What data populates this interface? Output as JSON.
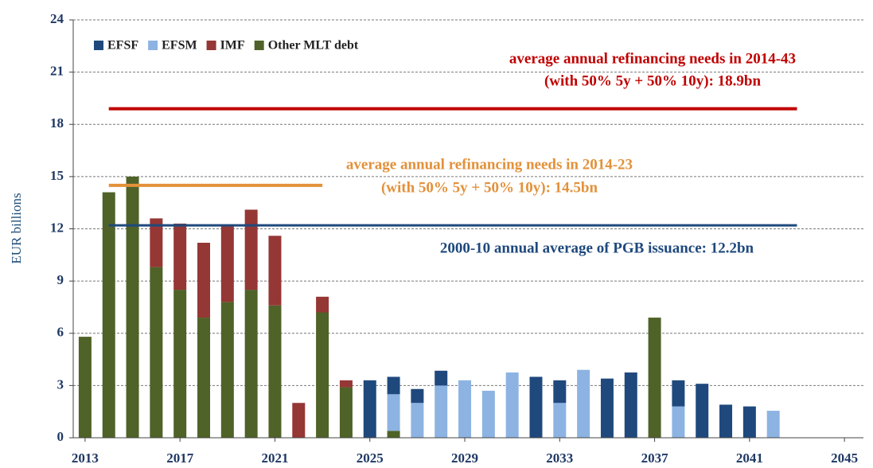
{
  "chart_data": {
    "type": "stacked_bar",
    "y_label": "EUR billions",
    "x": [
      2013,
      2014,
      2015,
      2016,
      2017,
      2018,
      2019,
      2020,
      2021,
      2022,
      2023,
      2024,
      2025,
      2026,
      2027,
      2028,
      2029,
      2030,
      2031,
      2032,
      2033,
      2034,
      2035,
      2036,
      2037,
      2038,
      2039,
      2040,
      2041,
      2042
    ],
    "series": [
      {
        "name": "Other MLT debt",
        "color": "#4f6228",
        "values": [
          5.8,
          14.1,
          15.0,
          9.8,
          8.5,
          6.9,
          7.8,
          8.5,
          7.6,
          0,
          7.2,
          2.9,
          0,
          0.4,
          0,
          0,
          0,
          0,
          0,
          0,
          0,
          0,
          0,
          0,
          6.9,
          0,
          0,
          0,
          0,
          0
        ]
      },
      {
        "name": "EFSM",
        "color": "#8db3e2",
        "values": [
          0,
          0,
          0,
          0,
          0,
          0,
          0,
          0,
          0,
          0,
          0,
          0,
          0,
          2.1,
          2.0,
          3.0,
          3.3,
          2.7,
          3.75,
          0,
          2.0,
          3.9,
          0,
          0,
          0,
          1.8,
          0,
          0,
          0,
          1.55
        ]
      },
      {
        "name": "EFSF",
        "color": "#1f497d",
        "values": [
          0,
          0,
          0,
          0,
          0,
          0,
          0,
          0,
          0,
          0,
          0,
          0,
          3.3,
          1.0,
          0.8,
          0.85,
          0,
          0,
          0,
          3.5,
          1.3,
          0,
          3.4,
          3.75,
          0,
          1.5,
          3.1,
          1.9,
          1.8,
          0
        ]
      },
      {
        "name": "IMF",
        "color": "#953735",
        "values": [
          0,
          0,
          0,
          2.8,
          3.8,
          4.3,
          4.4,
          4.6,
          4.0,
          2.0,
          0.9,
          0.4,
          0,
          0,
          0,
          0,
          0,
          0,
          0,
          0,
          0,
          0,
          0,
          0,
          0,
          0,
          0,
          0,
          0,
          0
        ]
      }
    ],
    "legend_order": [
      2,
      1,
      3,
      0
    ],
    "xlim": [
      2012.5,
      2045.8
    ],
    "xticks": [
      2013,
      2017,
      2021,
      2025,
      2029,
      2033,
      2037,
      2041,
      2045
    ],
    "ylim": [
      0,
      24
    ],
    "yticks": [
      0,
      3,
      6,
      9,
      12,
      15,
      18,
      21,
      24
    ],
    "grid": true,
    "reference_lines": [
      {
        "value": 18.9,
        "x_start": 2014,
        "x_end": 2043,
        "color": "#c00000",
        "label": [
          "average annual refinancing needs in 2014-43",
          "(with 50% 5y + 50% 10y): 18.9bn"
        ]
      },
      {
        "value": 14.5,
        "x_start": 2014,
        "x_end": 2023,
        "color": "#e3913a",
        "label": [
          "average annual refinancing needs in 2014-23",
          "(with 50% 5y + 50% 10y): 14.5bn"
        ]
      },
      {
        "value": 12.2,
        "x_start": 2014,
        "x_end": 2043,
        "color": "#1f497d",
        "label": [
          "2000-10 annual average of PGB issuance:  12.2bn"
        ]
      }
    ]
  }
}
